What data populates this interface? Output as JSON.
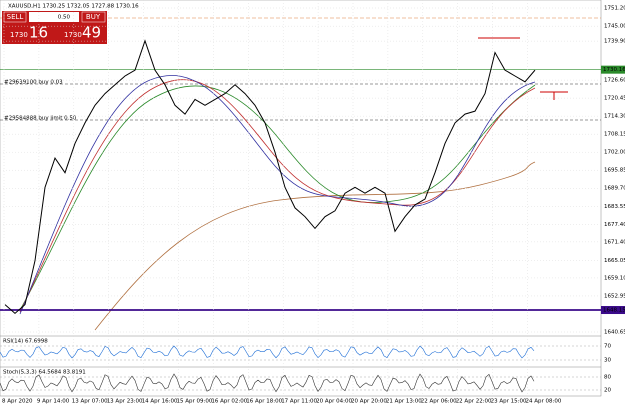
{
  "header": {
    "symbol_info": "XAUUSD,H1  1730.25 1732.05 1727.88 1730.16"
  },
  "trade_panel": {
    "sell": "SELL",
    "lot": "0.50",
    "buy": "BUY",
    "bid_big": "1730",
    "bid_small": "16",
    "ask_big": "1730",
    "ask_small": "49"
  },
  "price_axis": [
    "1751.20",
    "1745.00",
    "1739.90",
    "1726.60",
    "1720.45",
    "1714.30",
    "1708.15",
    "1702.00",
    "1695.85",
    "1689.70",
    "1683.55",
    "1677.40",
    "1671.40",
    "1665.05",
    "1659.10",
    "1652.95",
    "1640.65"
  ],
  "current_price": "1730.16",
  "support_level": "1648.15",
  "orders": [
    "#29639100 buy 0.03",
    "#29584888 buy limit 0.50"
  ],
  "rsi": {
    "label": "RSI(14) 67.6998",
    "levels": [
      "70",
      "30"
    ]
  },
  "stoch": {
    "label": "Stoch(5,3,3) 64.5684 83.8191",
    "levels": [
      "80",
      "20"
    ]
  },
  "time_axis": [
    "8 Apr 2020",
    "9 Apr 14:00",
    "13 Apr 07:00",
    "13 Apr 23:00",
    "14 Apr 16:00",
    "15 Apr 09:00",
    "16 Apr 02:00",
    "16 Apr 18:00",
    "17 Apr 11:00",
    "20 Apr 04:00",
    "20 Apr 20:00",
    "21 Apr 13:00",
    "22 Apr 06:00",
    "22 Apr 22:00",
    "23 Apr 15:00",
    "24 Apr 08:00"
  ],
  "price_path": [
    1650,
    1647,
    1650,
    1665,
    1690,
    1700,
    1695,
    1705,
    1712,
    1718,
    1722,
    1725,
    1728,
    1730,
    1740,
    1730,
    1725,
    1718,
    1715,
    1720,
    1718,
    1720,
    1722,
    1725,
    1722,
    1718,
    1712,
    1702,
    1690,
    1683,
    1680,
    1676,
    1680,
    1682,
    1688,
    1690,
    1688,
    1690,
    1688,
    1675,
    1680,
    1684,
    1686,
    1695,
    1705,
    1712,
    1715,
    1716,
    1722,
    1736,
    1730,
    1728,
    1726,
    1730
  ]
}
